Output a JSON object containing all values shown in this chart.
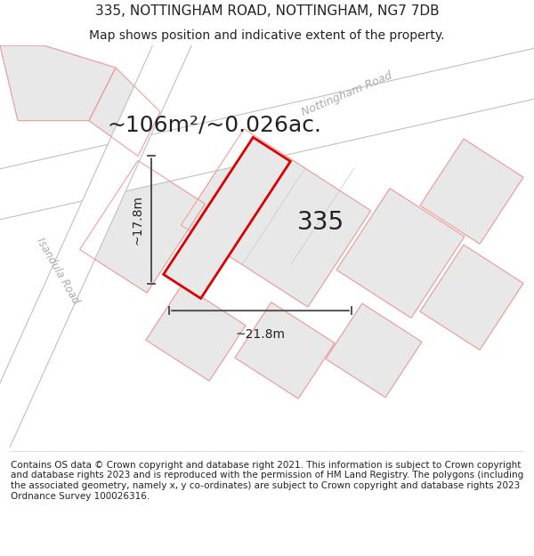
{
  "title_line1": "335, NOTTINGHAM ROAD, NOTTINGHAM, NG7 7DB",
  "title_line2": "Map shows position and indicative extent of the property.",
  "area_label": "~106m²/~0.026ac.",
  "property_number": "335",
  "width_label": "~21.8m",
  "height_label": "~17.8m",
  "road_label_1": "Nottingham Road",
  "road_label_2": "Isandula Road",
  "footer_text": "Contains OS data © Crown copyright and database right 2021. This information is subject to Crown copyright and database rights 2023 and is reproduced with the permission of HM Land Registry. The polygons (including the associated geometry, namely x, y co-ordinates) are subject to Crown copyright and database rights 2023 Ordnance Survey 100026316.",
  "map_bg": "#f0f0f0",
  "block_fill": "#e8e8e8",
  "block_edge": "#c8c8c8",
  "faint_red": "#f0a0a0",
  "road_fill": "#ffffff",
  "road_edge": "#c0c0c0",
  "property_fill": "#e8e8e8",
  "property_edge": "#dd0000",
  "dim_color": "#444444",
  "text_dark": "#222222",
  "text_road": "#aaaaaa",
  "title_fontsize": 11,
  "subtitle_fontsize": 10,
  "footer_fontsize": 7.5,
  "area_fontsize": 18,
  "num_fontsize": 20
}
